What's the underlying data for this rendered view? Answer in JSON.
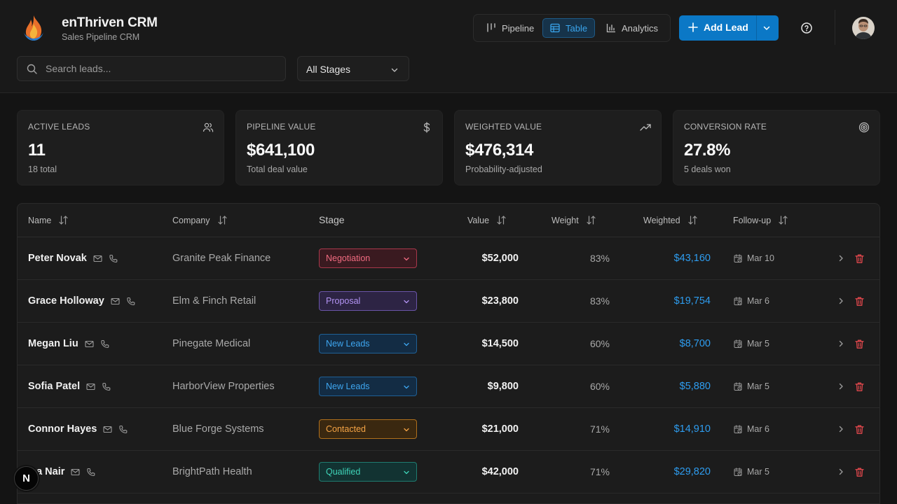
{
  "header": {
    "app_title": "enThriven CRM",
    "app_subtitle": "Sales Pipeline CRM",
    "views": [
      {
        "label": "Pipeline",
        "icon": "kanban-icon",
        "active": false
      },
      {
        "label": "Table",
        "icon": "table-icon",
        "active": true
      },
      {
        "label": "Analytics",
        "icon": "bar-chart-icon",
        "active": false
      }
    ],
    "add_lead_label": "Add Lead",
    "accent_color": "#0b78c6"
  },
  "filters": {
    "search_placeholder": "Search leads...",
    "stage_filter": "All Stages"
  },
  "stats": [
    {
      "label": "ACTIVE LEADS",
      "value": "11",
      "sub": "18 total",
      "icon": "users-icon"
    },
    {
      "label": "PIPELINE VALUE",
      "value": "$641,100",
      "sub": "Total deal value",
      "icon": "dollar-icon"
    },
    {
      "label": "WEIGHTED VALUE",
      "value": "$476,314",
      "sub": "Probability-adjusted",
      "icon": "trending-up-icon"
    },
    {
      "label": "CONVERSION RATE",
      "value": "27.8%",
      "sub": "5 deals won",
      "icon": "target-icon"
    }
  ],
  "table": {
    "columns": {
      "name": "Name",
      "company": "Company",
      "stage": "Stage",
      "value": "Value",
      "weight": "Weight",
      "weighted": "Weighted",
      "followup": "Follow-up"
    },
    "rows": [
      {
        "name": "Peter Novak",
        "company": "Granite Peak Finance",
        "stage": "Negotiation",
        "value": "$52,000",
        "weight": "83%",
        "weighted": "$43,160",
        "followup": "Mar 10"
      },
      {
        "name": "Grace Holloway",
        "company": "Elm & Finch Retail",
        "stage": "Proposal",
        "value": "$23,800",
        "weight": "83%",
        "weighted": "$19,754",
        "followup": "Mar 6"
      },
      {
        "name": "Megan Liu",
        "company": "Pinegate Medical",
        "stage": "New Leads",
        "value": "$14,500",
        "weight": "60%",
        "weighted": "$8,700",
        "followup": "Mar 5"
      },
      {
        "name": "Sofia Patel",
        "company": "HarborView Properties",
        "stage": "New Leads",
        "value": "$9,800",
        "weight": "60%",
        "weighted": "$5,880",
        "followup": "Mar 5"
      },
      {
        "name": "Connor Hayes",
        "company": "Blue Forge Systems",
        "stage": "Contacted",
        "value": "$21,000",
        "weight": "71%",
        "weighted": "$14,910",
        "followup": "Mar 6"
      },
      {
        "name": "iya Nair",
        "company": "BrightPath Health",
        "stage": "Qualified",
        "value": "$42,000",
        "weight": "71%",
        "weighted": "$29,820",
        "followup": "Mar 5"
      }
    ]
  },
  "stage_colors": {
    "Negotiation": {
      "bg": "#3a1a20",
      "border": "#a8384b",
      "text": "#f06b80"
    },
    "Proposal": {
      "bg": "#2d2444",
      "border": "#6a54a8",
      "text": "#b394f4"
    },
    "New Leads": {
      "bg": "#132c44",
      "border": "#1f6096",
      "text": "#3ea6f0"
    },
    "Contacted": {
      "bg": "#3a2810",
      "border": "#b0701c",
      "text": "#f5a445"
    },
    "Qualified": {
      "bg": "#123332",
      "border": "#1f7c70",
      "text": "#3fd3b8"
    }
  },
  "dev_badge": "N"
}
